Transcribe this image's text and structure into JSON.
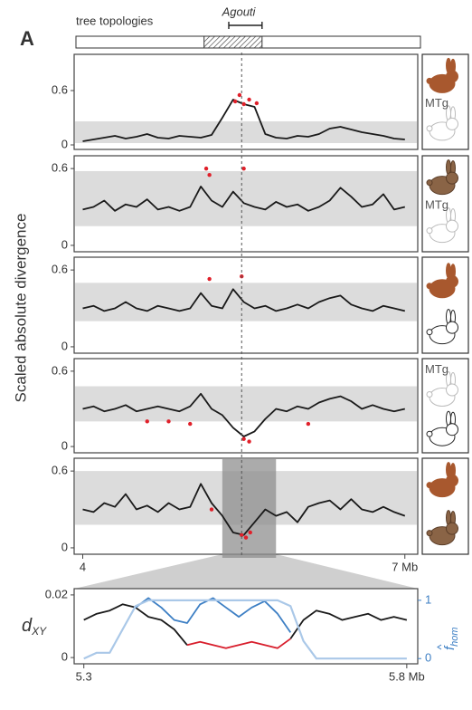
{
  "header": {
    "panel_label": "A",
    "topology_label": "tree topologies",
    "gene_label": "Agouti",
    "gene_range": [
      5.36,
      5.67
    ],
    "hatched_range": [
      5.13,
      5.67
    ],
    "gene_line": 5.48,
    "ylabel": "Scaled absolute divergence"
  },
  "chart_data": [
    {
      "type": "line",
      "x": [
        4.0,
        4.1,
        4.2,
        4.3,
        4.4,
        4.5,
        4.6,
        4.7,
        4.8,
        4.9,
        5.0,
        5.1,
        5.2,
        5.3,
        5.4,
        5.5,
        5.6,
        5.7,
        5.8,
        5.9,
        6.0,
        6.1,
        6.2,
        6.3,
        6.4,
        6.5,
        6.6,
        6.7,
        6.8,
        6.9,
        7.0
      ],
      "series": [
        {
          "color": "#1a1a1a",
          "values": [
            0.04,
            0.06,
            0.08,
            0.1,
            0.07,
            0.09,
            0.12,
            0.08,
            0.07,
            0.1,
            0.09,
            0.08,
            0.11,
            0.3,
            0.5,
            0.45,
            0.42,
            0.12,
            0.08,
            0.07,
            0.1,
            0.09,
            0.12,
            0.18,
            0.2,
            0.17,
            0.14,
            0.12,
            0.1,
            0.07,
            0.06
          ]
        }
      ],
      "points": {
        "color": "#e0202a",
        "x": [
          5.42,
          5.46,
          5.5,
          5.55,
          5.62
        ],
        "y": [
          0.48,
          0.55,
          0.45,
          0.5,
          0.46
        ]
      },
      "band": [
        0.02,
        0.26
      ],
      "xlim": [
        3.92,
        7.12
      ],
      "ylim": [
        -0.05,
        1.0
      ],
      "yticks": [
        0,
        0.6
      ],
      "icon_label": "MTg"
    },
    {
      "type": "line",
      "x": [
        4.0,
        4.1,
        4.2,
        4.3,
        4.4,
        4.5,
        4.6,
        4.7,
        4.8,
        4.9,
        5.0,
        5.1,
        5.2,
        5.3,
        5.4,
        5.5,
        5.6,
        5.7,
        5.8,
        5.9,
        6.0,
        6.1,
        6.2,
        6.3,
        6.4,
        6.5,
        6.6,
        6.7,
        6.8,
        6.9,
        7.0
      ],
      "series": [
        {
          "color": "#1a1a1a",
          "values": [
            0.28,
            0.3,
            0.35,
            0.27,
            0.32,
            0.3,
            0.36,
            0.28,
            0.3,
            0.27,
            0.3,
            0.46,
            0.35,
            0.3,
            0.42,
            0.33,
            0.3,
            0.28,
            0.34,
            0.3,
            0.32,
            0.27,
            0.3,
            0.35,
            0.45,
            0.38,
            0.3,
            0.32,
            0.4,
            0.28,
            0.3
          ]
        }
      ],
      "points": {
        "color": "#e0202a",
        "x": [
          5.15,
          5.18,
          5.5
        ],
        "y": [
          0.6,
          0.55,
          0.6
        ]
      },
      "band": [
        0.15,
        0.58
      ],
      "xlim": [
        3.92,
        7.12
      ],
      "ylim": [
        -0.05,
        0.7
      ],
      "yticks": [
        0,
        0.6
      ],
      "icon_label": "MTg"
    },
    {
      "type": "line",
      "x": [
        4.0,
        4.1,
        4.2,
        4.3,
        4.4,
        4.5,
        4.6,
        4.7,
        4.8,
        4.9,
        5.0,
        5.1,
        5.2,
        5.3,
        5.4,
        5.5,
        5.6,
        5.7,
        5.8,
        5.9,
        6.0,
        6.1,
        6.2,
        6.3,
        6.4,
        6.5,
        6.6,
        6.7,
        6.8,
        6.9,
        7.0
      ],
      "series": [
        {
          "color": "#1a1a1a",
          "values": [
            0.3,
            0.32,
            0.28,
            0.3,
            0.35,
            0.3,
            0.28,
            0.32,
            0.3,
            0.28,
            0.3,
            0.42,
            0.32,
            0.3,
            0.45,
            0.35,
            0.3,
            0.32,
            0.28,
            0.3,
            0.33,
            0.3,
            0.35,
            0.38,
            0.4,
            0.33,
            0.3,
            0.28,
            0.32,
            0.3,
            0.28
          ]
        }
      ],
      "points": {
        "color": "#e0202a",
        "x": [
          5.18,
          5.48
        ],
        "y": [
          0.53,
          0.55
        ]
      },
      "band": [
        0.2,
        0.5
      ],
      "xlim": [
        3.92,
        7.12
      ],
      "ylim": [
        -0.05,
        0.7
      ],
      "yticks": [
        0,
        0.6
      ]
    },
    {
      "type": "line",
      "x": [
        4.0,
        4.1,
        4.2,
        4.3,
        4.4,
        4.5,
        4.6,
        4.7,
        4.8,
        4.9,
        5.0,
        5.1,
        5.2,
        5.3,
        5.4,
        5.5,
        5.6,
        5.7,
        5.8,
        5.9,
        6.0,
        6.1,
        6.2,
        6.3,
        6.4,
        6.5,
        6.6,
        6.7,
        6.8,
        6.9,
        7.0
      ],
      "series": [
        {
          "color": "#1a1a1a",
          "values": [
            0.3,
            0.32,
            0.28,
            0.3,
            0.33,
            0.28,
            0.3,
            0.32,
            0.3,
            0.28,
            0.32,
            0.42,
            0.3,
            0.25,
            0.15,
            0.08,
            0.12,
            0.22,
            0.3,
            0.28,
            0.32,
            0.3,
            0.35,
            0.38,
            0.4,
            0.36,
            0.3,
            0.33,
            0.3,
            0.28,
            0.3
          ]
        }
      ],
      "points": {
        "color": "#e0202a",
        "x": [
          4.6,
          4.8,
          5.0,
          5.5,
          5.55,
          6.1
        ],
        "y": [
          0.2,
          0.2,
          0.18,
          0.06,
          0.04,
          0.18
        ]
      },
      "band": [
        0.2,
        0.48
      ],
      "xlim": [
        3.92,
        7.12
      ],
      "ylim": [
        -0.05,
        0.7
      ],
      "yticks": [
        0,
        0.6
      ],
      "icon_label": "MTg"
    },
    {
      "type": "line",
      "x": [
        4.0,
        4.1,
        4.2,
        4.3,
        4.4,
        4.5,
        4.6,
        4.7,
        4.8,
        4.9,
        5.0,
        5.1,
        5.2,
        5.3,
        5.4,
        5.5,
        5.6,
        5.7,
        5.8,
        5.9,
        6.0,
        6.1,
        6.2,
        6.3,
        6.4,
        6.5,
        6.6,
        6.7,
        6.8,
        6.9,
        7.0
      ],
      "series": [
        {
          "color": "#1a1a1a",
          "values": [
            0.3,
            0.28,
            0.35,
            0.32,
            0.42,
            0.3,
            0.33,
            0.28,
            0.35,
            0.3,
            0.32,
            0.5,
            0.35,
            0.25,
            0.12,
            0.1,
            0.2,
            0.3,
            0.25,
            0.28,
            0.2,
            0.32,
            0.35,
            0.37,
            0.3,
            0.38,
            0.3,
            0.28,
            0.32,
            0.28,
            0.25
          ]
        }
      ],
      "points": {
        "color": "#e0202a",
        "x": [
          5.2,
          5.48,
          5.52,
          5.56
        ],
        "y": [
          0.3,
          0.1,
          0.08,
          0.12
        ]
      },
      "band": [
        0.18,
        0.6
      ],
      "zoom": [
        5.3,
        5.8
      ],
      "xlim": [
        3.92,
        7.12
      ],
      "ylim": [
        -0.05,
        0.7
      ],
      "yticks": [
        0,
        0.6
      ],
      "xticks": [
        4,
        {
          "value": 7,
          "label": "7 Mb"
        }
      ]
    },
    {
      "type": "line",
      "x": [
        5.3,
        5.32,
        5.34,
        5.36,
        5.38,
        5.4,
        5.42,
        5.44,
        5.46,
        5.48,
        5.5,
        5.52,
        5.54,
        5.56,
        5.58,
        5.6,
        5.62,
        5.64,
        5.66,
        5.68,
        5.7,
        5.72,
        5.74,
        5.76,
        5.78,
        5.8
      ],
      "series": [
        {
          "color": "#1a1a1a",
          "values": [
            0.012,
            0.014,
            0.015,
            0.017,
            0.016,
            0.013,
            0.012,
            0.009,
            0.004,
            null,
            null,
            null,
            null,
            null,
            null,
            null,
            0.006,
            0.012,
            0.015,
            0.014,
            0.012,
            0.013,
            0.014,
            0.012,
            0.013,
            0.012
          ]
        },
        {
          "color": "#d81e2c",
          "values": [
            null,
            null,
            null,
            null,
            null,
            null,
            null,
            null,
            0.004,
            0.005,
            0.004,
            0.003,
            0.004,
            0.005,
            0.004,
            0.003,
            0.006,
            null,
            null,
            null,
            null,
            null,
            null,
            null,
            null,
            null
          ]
        },
        {
          "color": "#3d7fc4",
          "values": [
            null,
            null,
            null,
            null,
            0.016,
            0.019,
            0.016,
            0.012,
            0.011,
            0.017,
            0.019,
            0.016,
            0.013,
            0.016,
            0.018,
            0.014,
            0.008,
            null,
            null,
            null,
            null,
            null,
            null,
            null,
            null,
            null
          ]
        },
        {
          "color": "#aac8e8",
          "axis": "y2",
          "values": [
            0,
            0.1,
            0.1,
            0.5,
            0.9,
            1,
            1,
            1,
            1,
            1,
            1,
            1,
            1,
            1,
            1,
            1,
            0.9,
            0.3,
            0,
            0,
            0,
            0,
            0,
            0,
            0,
            0
          ]
        }
      ],
      "xlim": [
        5.285,
        5.817
      ],
      "ylim": [
        -0.002,
        0.022
      ],
      "yticks": [
        0,
        0.02
      ],
      "y2lim": [
        -0.09,
        1.2
      ],
      "y2ticks": [
        0,
        1
      ],
      "xticks": [
        5.3,
        {
          "value": 5.8,
          "label": "5.8 Mb"
        }
      ],
      "ylabel": {
        "main": "d",
        "sub": "XY"
      },
      "y2label": {
        "main": "f",
        "sub": "hom"
      }
    }
  ]
}
